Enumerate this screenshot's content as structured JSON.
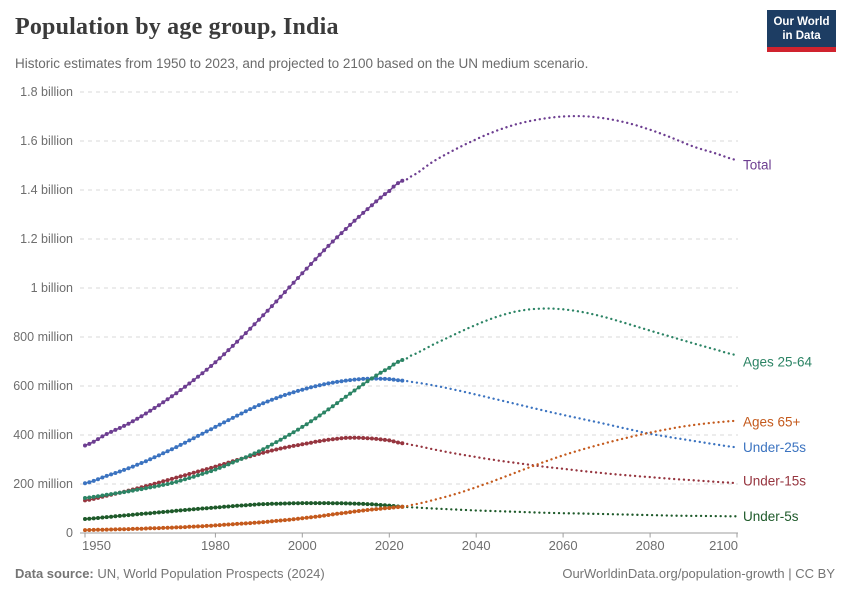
{
  "header": {
    "title": "Population by age group, India",
    "subtitle": "Historic estimates from 1950 to 2023, and projected to 2100 based on the UN medium scenario.",
    "logo": {
      "line1": "Our World",
      "line2": "in Data",
      "bg_color": "#1d3d63",
      "accent_color": "#d0232e"
    }
  },
  "footer": {
    "source_label": "Data source:",
    "source_text": " UN, World Population Prospects (2024)",
    "right_text": "OurWorldinData.org/population-growth | CC BY"
  },
  "chart_data": {
    "type": "line",
    "title": "Population by age group, India",
    "projection_start_year": 2023,
    "grid": true,
    "legend_position": "right-of-line-ends",
    "x": {
      "min": 1950,
      "max": 2100,
      "ticks": [
        1950,
        1980,
        2000,
        2020,
        2040,
        2060,
        2080,
        2100
      ]
    },
    "y": {
      "min": 0,
      "max": 1.8,
      "unit": "billion people",
      "ticks": [
        {
          "value": 0,
          "label": "0"
        },
        {
          "value": 0.2,
          "label": "200 million"
        },
        {
          "value": 0.4,
          "label": "400 million"
        },
        {
          "value": 0.6,
          "label": "600 million"
        },
        {
          "value": 0.8,
          "label": "800 million"
        },
        {
          "value": 1,
          "label": "1 billion"
        },
        {
          "value": 1.2,
          "label": "1.2 billion"
        },
        {
          "value": 1.4,
          "label": "1.4 billion"
        },
        {
          "value": 1.6,
          "label": "1.6 billion"
        },
        {
          "value": 1.8,
          "label": "1.8 billion"
        }
      ]
    },
    "historic_years": [
      1950,
      1955,
      1960,
      1965,
      1970,
      1975,
      1980,
      1985,
      1990,
      1995,
      2000,
      2005,
      2010,
      2015,
      2020,
      2023
    ],
    "projected_years": [
      2023,
      2025,
      2030,
      2035,
      2040,
      2045,
      2050,
      2055,
      2060,
      2065,
      2070,
      2075,
      2080,
      2085,
      2090,
      2095,
      2100
    ],
    "series": [
      {
        "id": "total",
        "label": "Total",
        "color": "#6d3e91",
        "label_offset_y": 5,
        "historic": [
          0.357,
          0.404,
          0.446,
          0.499,
          0.558,
          0.624,
          0.697,
          0.781,
          0.87,
          0.964,
          1.06,
          1.154,
          1.241,
          1.322,
          1.396,
          1.438
        ],
        "projected": [
          1.438,
          1.455,
          1.515,
          1.564,
          1.607,
          1.644,
          1.672,
          1.69,
          1.7,
          1.701,
          1.691,
          1.673,
          1.646,
          1.613,
          1.577,
          1.55,
          1.522
        ]
      },
      {
        "id": "ages-25-64",
        "label": "Ages 25-64",
        "color": "#2c8465",
        "label_offset_y": 7,
        "historic": [
          0.143,
          0.156,
          0.17,
          0.186,
          0.204,
          0.23,
          0.259,
          0.295,
          0.333,
          0.381,
          0.433,
          0.492,
          0.556,
          0.619,
          0.674,
          0.706
        ],
        "projected": [
          0.706,
          0.724,
          0.768,
          0.81,
          0.85,
          0.884,
          0.907,
          0.916,
          0.913,
          0.9,
          0.879,
          0.853,
          0.826,
          0.8,
          0.774,
          0.749,
          0.726
        ]
      },
      {
        "id": "ages-65plus",
        "label": "Ages 65+",
        "color": "#c45a1d",
        "label_offset_y": 1,
        "historic": [
          0.012,
          0.014,
          0.016,
          0.019,
          0.022,
          0.026,
          0.031,
          0.037,
          0.043,
          0.051,
          0.06,
          0.071,
          0.083,
          0.094,
          0.102,
          0.107
        ],
        "projected": [
          0.107,
          0.114,
          0.134,
          0.158,
          0.187,
          0.219,
          0.253,
          0.286,
          0.317,
          0.344,
          0.368,
          0.39,
          0.41,
          0.427,
          0.441,
          0.451,
          0.458
        ]
      },
      {
        "id": "under-25s",
        "label": "Under-25s",
        "color": "#3b73c0",
        "label_offset_y": 0,
        "historic": [
          0.203,
          0.233,
          0.264,
          0.301,
          0.342,
          0.387,
          0.433,
          0.479,
          0.522,
          0.557,
          0.585,
          0.607,
          0.622,
          0.63,
          0.628,
          0.622
        ],
        "projected": [
          0.622,
          0.617,
          0.603,
          0.585,
          0.565,
          0.544,
          0.523,
          0.502,
          0.482,
          0.463,
          0.444,
          0.424,
          0.405,
          0.39,
          0.376,
          0.362,
          0.35
        ]
      },
      {
        "id": "under-15s",
        "label": "Under-15s",
        "color": "#96353f",
        "label_offset_y": -2,
        "historic": [
          0.133,
          0.152,
          0.173,
          0.196,
          0.221,
          0.246,
          0.271,
          0.298,
          0.323,
          0.345,
          0.362,
          0.378,
          0.388,
          0.387,
          0.378,
          0.366
        ],
        "projected": [
          0.366,
          0.36,
          0.342,
          0.325,
          0.31,
          0.296,
          0.284,
          0.272,
          0.262,
          0.252,
          0.243,
          0.235,
          0.228,
          0.221,
          0.215,
          0.209,
          0.204
        ]
      },
      {
        "id": "under-5s",
        "label": "Under-5s",
        "color": "#1e5a2a",
        "label_offset_y": 0,
        "historic": [
          0.057,
          0.065,
          0.073,
          0.081,
          0.089,
          0.097,
          0.104,
          0.111,
          0.117,
          0.12,
          0.122,
          0.122,
          0.121,
          0.118,
          0.112,
          0.107
        ],
        "projected": [
          0.107,
          0.105,
          0.1,
          0.096,
          0.092,
          0.089,
          0.086,
          0.083,
          0.081,
          0.079,
          0.077,
          0.075,
          0.073,
          0.071,
          0.07,
          0.069,
          0.068
        ]
      }
    ]
  }
}
